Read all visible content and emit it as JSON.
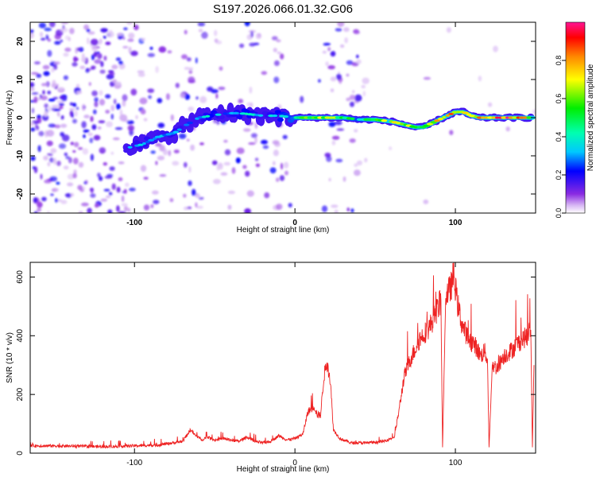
{
  "title": "S197.2026.066.01.32.G06",
  "chart_data": [
    {
      "type": "heatmap",
      "xlabel": "Height of straight line (km)",
      "ylabel": "Frequency (Hz)",
      "xlim": [
        -165,
        150
      ],
      "ylim": [
        -25,
        25
      ],
      "xticks": [
        -100,
        0,
        100
      ],
      "yticks": [
        -20,
        -10,
        0,
        10,
        20
      ],
      "colorbar": {
        "label": "Normalized spectral amplitude",
        "range": [
          0,
          1
        ],
        "ticks": [
          0,
          0.2,
          0.4,
          0.6,
          0.8
        ],
        "tick_labels": [
          "0.0",
          "0.2",
          "0.4",
          "0.6",
          "0.8"
        ]
      },
      "ridge": {
        "x": [
          -105,
          -95,
          -85,
          -75,
          -68,
          -60,
          -52,
          -45,
          -38,
          -30,
          -20,
          -10,
          0,
          10,
          20,
          30,
          40,
          50,
          60,
          65,
          70,
          75,
          80,
          85,
          90,
          95,
          100,
          105,
          110,
          115,
          120,
          125,
          130,
          135,
          140,
          148
        ],
        "y": [
          -8,
          -7,
          -5,
          -4,
          -2,
          0,
          0.5,
          1,
          1.2,
          1,
          0.5,
          0.5,
          0,
          0,
          0,
          0,
          -0.5,
          -0.5,
          -1,
          -1.5,
          -2,
          -2.5,
          -2.5,
          -1.5,
          -0.5,
          0.5,
          1.5,
          1.5,
          0.5,
          0,
          0,
          0,
          0,
          0,
          0,
          0
        ],
        "amplitude": [
          0.3,
          0.35,
          0.3,
          0.35,
          0.3,
          0.3,
          0.4,
          0.3,
          0.35,
          0.4,
          0.3,
          0.4,
          0.5,
          0.65,
          0.7,
          0.55,
          0.45,
          0.6,
          0.75,
          0.8,
          0.7,
          0.6,
          0.55,
          0.65,
          0.8,
          0.85,
          0.85,
          0.8,
          0.8,
          0.85,
          0.9,
          0.95,
          0.95,
          0.9,
          0.85,
          0.7
        ]
      }
    },
    {
      "type": "line",
      "xlabel": "Height of straight line (km)",
      "ylabel": "SNR (10 * v/v)",
      "xlim": [
        -165,
        150
      ],
      "ylim": [
        0,
        650
      ],
      "xticks": [
        -100,
        0,
        100
      ],
      "yticks": [
        0,
        200,
        400,
        600
      ],
      "series": [
        {
          "name": "SNR",
          "color": "#ee2222",
          "x": [
            -165,
            -150,
            -120,
            -100,
            -85,
            -70,
            -65,
            -62,
            -58,
            -55,
            -50,
            -45,
            -40,
            -35,
            -30,
            -25,
            -20,
            -15,
            -10,
            -5,
            0,
            5,
            8,
            12,
            14,
            16,
            18,
            20,
            22,
            24,
            28,
            35,
            45,
            55,
            62,
            65,
            68,
            72,
            78,
            84,
            88,
            91,
            92,
            94,
            97,
            99,
            101,
            104,
            108,
            112,
            116,
            118,
            120,
            121,
            123,
            126,
            130,
            135,
            140,
            145,
            147,
            148,
            149
          ],
          "y": [
            25,
            25,
            22,
            25,
            28,
            40,
            80,
            60,
            45,
            55,
            45,
            50,
            45,
            40,
            55,
            40,
            35,
            40,
            60,
            45,
            50,
            65,
            140,
            160,
            130,
            130,
            260,
            310,
            250,
            80,
            50,
            35,
            35,
            40,
            55,
            150,
            260,
            320,
            390,
            430,
            480,
            520,
            20,
            540,
            560,
            610,
            520,
            440,
            390,
            370,
            330,
            350,
            320,
            20,
            300,
            290,
            330,
            350,
            380,
            400,
            420,
            20,
            300
          ]
        }
      ]
    }
  ]
}
